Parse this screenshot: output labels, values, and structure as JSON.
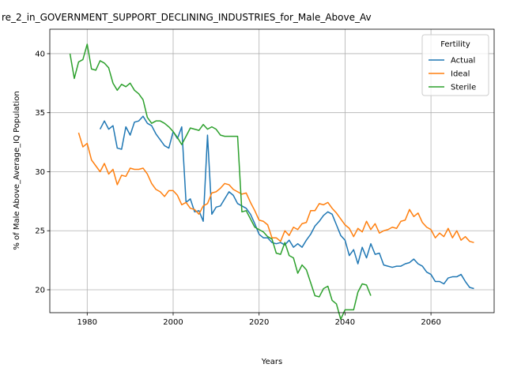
{
  "chart_data": {
    "type": "line",
    "title": "re_2_in_GOVERNMENT_SUPPORT_DECLINING_INDUSTRIES_for_Male_Above_Av",
    "x_label": "Years",
    "y_label": "% of Male Above_Average_IQ Population",
    "legend_title": "Fertility",
    "legend": "upper right",
    "grid": true,
    "x": [
      1976,
      1977,
      1978,
      1979,
      1980,
      1981,
      1982,
      1983,
      1984,
      1985,
      1986,
      1987,
      1988,
      1989,
      1990,
      1991,
      1992,
      1993,
      1994,
      1995,
      1996,
      1997,
      1998,
      1999,
      2000,
      2001,
      2002,
      2003,
      2004,
      2005,
      2006,
      2007,
      2008,
      2009,
      2010,
      2011,
      2012,
      2013,
      2014,
      2015,
      2016,
      2017,
      2018,
      2019,
      2020,
      2021,
      2022,
      2023,
      2024,
      2025,
      2026,
      2027,
      2028,
      2029,
      2030,
      2031,
      2032,
      2033,
      2034,
      2035,
      2036,
      2037,
      2038,
      2039,
      2040,
      2041,
      2042,
      2043,
      2044,
      2045,
      2046,
      2047,
      2048,
      2049,
      2050,
      2051,
      2052,
      2053,
      2054,
      2055,
      2056,
      2057,
      2058,
      2059,
      2060,
      2061,
      2062,
      2063,
      2064,
      2065,
      2066,
      2067,
      2068,
      2069,
      2070
    ],
    "series": [
      {
        "name": "Actual",
        "color": "#1f77b4",
        "values": [
          null,
          null,
          null,
          null,
          null,
          null,
          null,
          33.6,
          34.3,
          33.6,
          33.9,
          32.0,
          31.9,
          33.8,
          33.1,
          34.2,
          34.3,
          34.7,
          34.1,
          33.9,
          33.2,
          32.7,
          32.2,
          32.0,
          33.4,
          32.8,
          33.8,
          27.4,
          27.7,
          26.6,
          26.7,
          25.8,
          33.1,
          26.4,
          27.0,
          27.1,
          27.7,
          28.3,
          28.0,
          27.3,
          27.1,
          26.9,
          26.4,
          25.6,
          24.7,
          24.4,
          24.4,
          24.0,
          23.9,
          24.0,
          23.8,
          24.2,
          23.6,
          23.9,
          23.6,
          24.2,
          24.7,
          25.4,
          25.8,
          26.3,
          26.6,
          26.4,
          25.5,
          24.6,
          24.2,
          22.9,
          23.4,
          22.2,
          23.6,
          22.7,
          23.9,
          23.0,
          23.1,
          22.1,
          22.0,
          21.9,
          22.0,
          22.0,
          22.2,
          22.3,
          22.6,
          22.2,
          22.0,
          21.5,
          21.3,
          20.7,
          20.7,
          20.5,
          21.0,
          21.1,
          21.1,
          21.3,
          20.7,
          20.2,
          20.1
        ]
      },
      {
        "name": "Ideal",
        "color": "#ff7f0e",
        "values": [
          null,
          null,
          33.3,
          32.1,
          32.4,
          31.0,
          30.5,
          30.0,
          30.7,
          29.8,
          30.2,
          28.9,
          29.7,
          29.6,
          30.3,
          30.2,
          30.2,
          30.3,
          29.8,
          29.0,
          28.5,
          28.3,
          27.9,
          28.4,
          28.4,
          28.0,
          27.2,
          27.4,
          26.9,
          26.8,
          26.4,
          27.1,
          27.3,
          28.2,
          28.3,
          28.6,
          29.0,
          28.9,
          28.5,
          28.3,
          28.1,
          28.2,
          27.4,
          26.7,
          25.9,
          25.8,
          25.5,
          24.4,
          24.4,
          24.1,
          25.0,
          24.6,
          25.3,
          25.1,
          25.6,
          25.7,
          26.7,
          26.7,
          27.3,
          27.2,
          27.4,
          26.9,
          26.5,
          26.0,
          25.5,
          25.2,
          24.5,
          25.2,
          24.9,
          25.8,
          25.1,
          25.6,
          24.8,
          25.0,
          25.1,
          25.3,
          25.2,
          25.8,
          25.9,
          26.8,
          26.2,
          26.5,
          25.7,
          25.3,
          25.1,
          24.4,
          24.8,
          24.5,
          25.2,
          24.4,
          25.0,
          24.2,
          24.5,
          24.1,
          24.0
        ]
      },
      {
        "name": "Sterile",
        "color": "#2ca02c",
        "values": [
          40.0,
          37.9,
          39.3,
          39.5,
          40.8,
          38.7,
          38.6,
          39.4,
          39.2,
          38.8,
          37.5,
          36.9,
          37.4,
          37.2,
          37.5,
          36.9,
          36.6,
          36.1,
          34.6,
          34.1,
          34.3,
          34.3,
          34.1,
          33.8,
          33.4,
          32.9,
          32.3,
          33.0,
          33.7,
          33.6,
          33.5,
          34.0,
          33.6,
          33.8,
          33.6,
          33.1,
          33.0,
          33.0,
          33.0,
          33.0,
          26.6,
          26.7,
          26.0,
          25.3,
          25.1,
          24.9,
          24.5,
          24.3,
          23.1,
          23.0,
          24.0,
          22.9,
          22.7,
          21.4,
          22.1,
          21.7,
          20.6,
          19.5,
          19.4,
          20.1,
          20.3,
          19.1,
          18.8,
          17.5,
          18.3,
          18.3,
          18.3,
          19.8,
          20.5,
          20.4,
          19.5,
          null,
          null,
          null,
          null,
          null,
          null,
          null,
          null,
          null,
          null,
          null,
          null,
          null,
          null,
          null,
          null,
          null,
          null,
          null,
          null,
          null,
          null,
          null,
          null
        ]
      }
    ],
    "xlim": [
      1971.3,
      2074.7
    ],
    "xticks": [
      1980,
      2000,
      2020,
      2040,
      2060
    ],
    "ylim": [
      18.06,
      42.07
    ],
    "yticks": [
      20,
      25,
      30,
      35,
      40
    ]
  }
}
